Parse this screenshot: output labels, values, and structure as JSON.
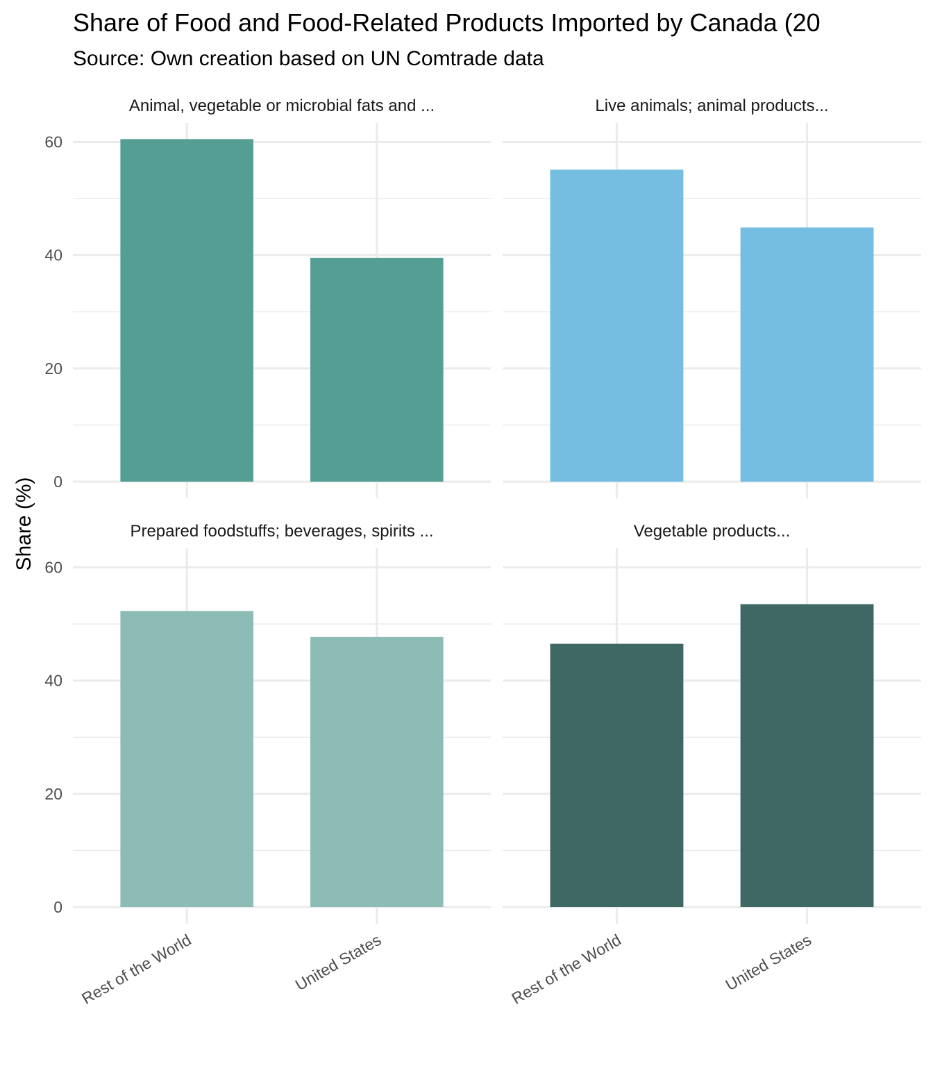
{
  "chart_data": {
    "type": "bar",
    "title": "Share of Food and Food-Related Products Imported by Canada (20",
    "subtitle": "Source: Own creation based on UN Comtrade data",
    "xlabel": "",
    "ylabel": "Share (%)",
    "ylim": [
      0,
      63
    ],
    "yticks": [
      0,
      20,
      40,
      60
    ],
    "grid": true,
    "categories": [
      "Rest of the World",
      "United States"
    ],
    "facets": [
      {
        "title": "Animal, vegetable or microbial fats and ...",
        "color": "#559E94",
        "values": [
          60.5,
          39.5
        ]
      },
      {
        "title": "Live animals; animal products...",
        "color": "#76BEE1",
        "values": [
          55.1,
          44.9
        ]
      },
      {
        "title": "Prepared foodstuffs; beverages, spirits ...",
        "color": "#8CBCB5",
        "values": [
          52.3,
          47.7
        ]
      },
      {
        "title": "Vegetable products...",
        "color": "#3F6763",
        "values": [
          46.5,
          53.5
        ]
      }
    ]
  }
}
